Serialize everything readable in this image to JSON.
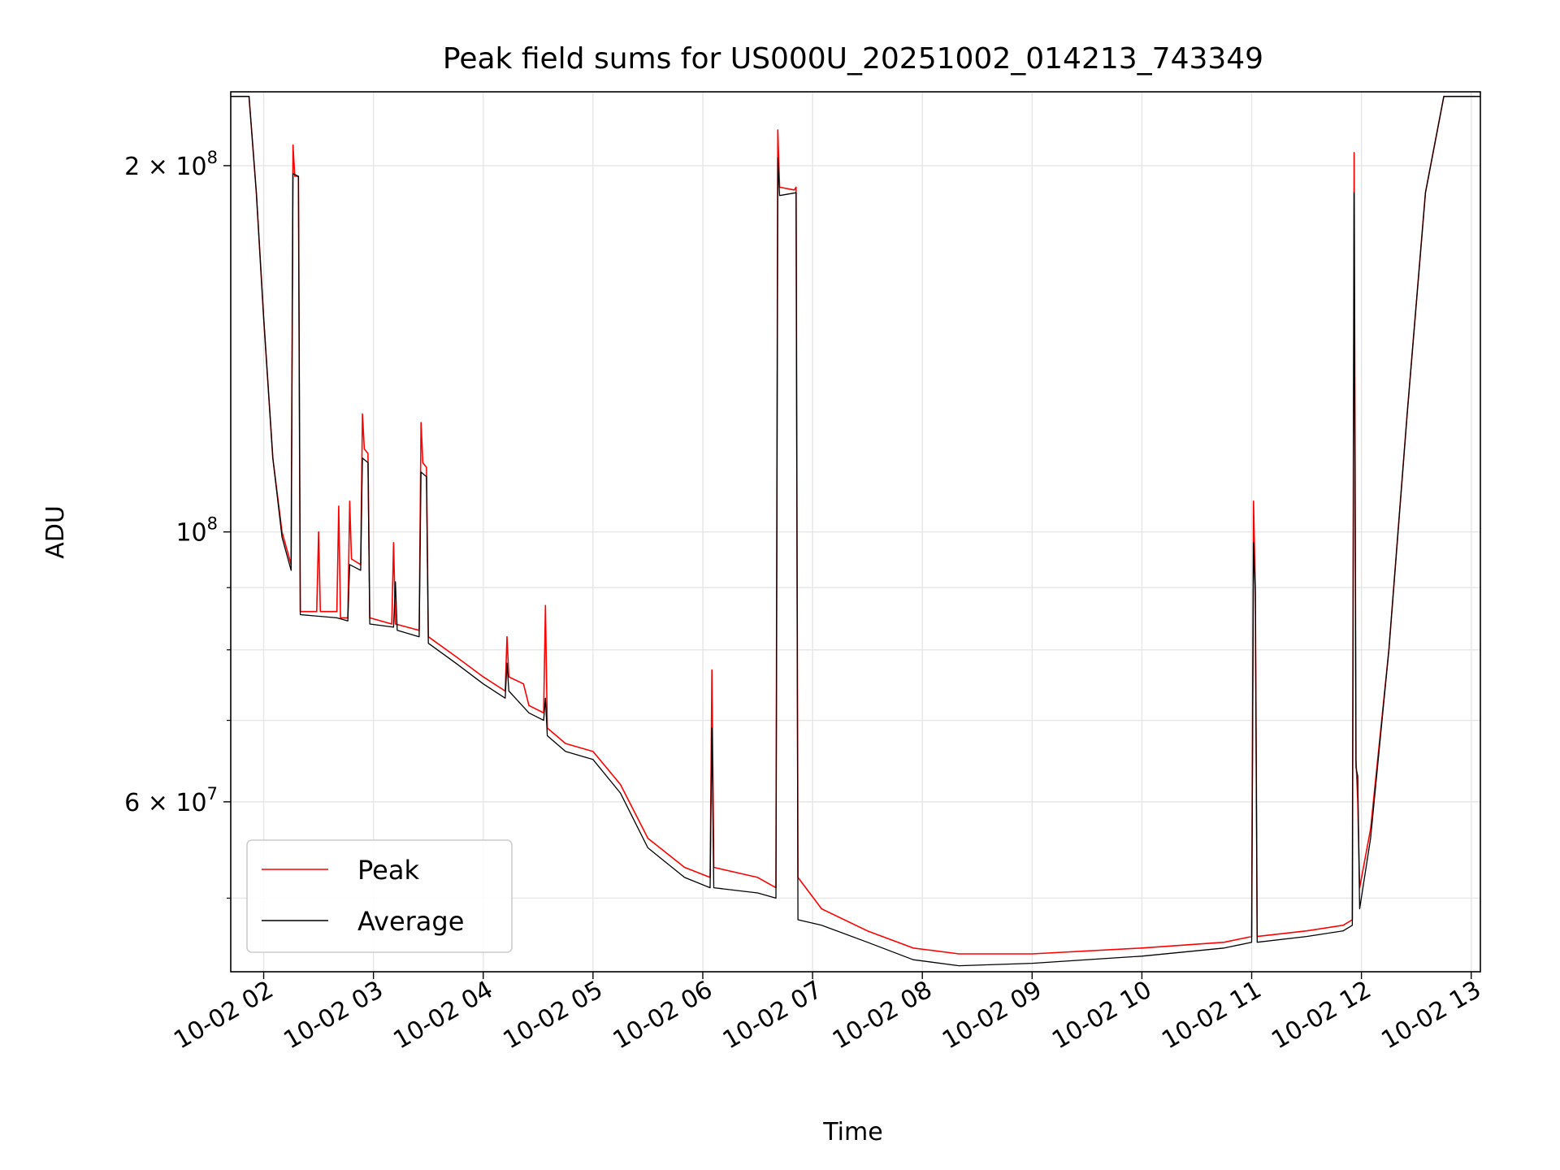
{
  "chart_data": {
    "type": "line",
    "title": "Peak field sums for US000U_20251002_014213_743349",
    "xlabel": "Time",
    "ylabel": "ADU",
    "y_scale": "log",
    "xlim": [
      "2025-10-02T01:42",
      "2025-10-02T13:05"
    ],
    "ylim": [
      43500000,
      230000000
    ],
    "grid": true,
    "legend_position": "lower-left",
    "x_ticks": [
      {
        "t": "2025-10-02T02:00",
        "label": "10-02 02"
      },
      {
        "t": "2025-10-02T03:00",
        "label": "10-02 03"
      },
      {
        "t": "2025-10-02T04:00",
        "label": "10-02 04"
      },
      {
        "t": "2025-10-02T05:00",
        "label": "10-02 05"
      },
      {
        "t": "2025-10-02T06:00",
        "label": "10-02 06"
      },
      {
        "t": "2025-10-02T07:00",
        "label": "10-02 07"
      },
      {
        "t": "2025-10-02T08:00",
        "label": "10-02 08"
      },
      {
        "t": "2025-10-02T09:00",
        "label": "10-02 09"
      },
      {
        "t": "2025-10-02T10:00",
        "label": "10-02 10"
      },
      {
        "t": "2025-10-02T11:00",
        "label": "10-02 11"
      },
      {
        "t": "2025-10-02T12:00",
        "label": "10-02 12"
      },
      {
        "t": "2025-10-02T13:00",
        "label": "10-02 13"
      }
    ],
    "y_major_ticks": [
      {
        "value": 200000000,
        "mantissa": "2",
        "exponent": "8"
      },
      {
        "value": 100000000,
        "mantissa": "",
        "exponent": "8"
      },
      {
        "value": 60000000,
        "mantissa": "6",
        "exponent": "7"
      }
    ],
    "y_minor_ticks": [
      50000000,
      70000000,
      80000000,
      90000000
    ],
    "series": [
      {
        "name": "Peak",
        "color": "#ff0000",
        "points": [
          [
            "2025-10-02T01:42",
            228000000
          ],
          [
            "2025-10-02T01:52",
            228000000
          ],
          [
            "2025-10-02T01:56",
            190000000
          ],
          [
            "2025-10-02T02:00",
            150000000
          ],
          [
            "2025-10-02T02:05",
            115000000
          ],
          [
            "2025-10-02T02:10",
            100000000
          ],
          [
            "2025-10-02T02:15",
            94000000
          ],
          [
            "2025-10-02T02:16",
            208000000
          ],
          [
            "2025-10-02T02:17",
            196000000
          ],
          [
            "2025-10-02T02:19",
            196000000
          ],
          [
            "2025-10-02T02:20",
            86000000
          ],
          [
            "2025-10-02T02:29",
            86000000
          ],
          [
            "2025-10-02T02:30",
            100000000
          ],
          [
            "2025-10-02T02:31",
            86000000
          ],
          [
            "2025-10-02T02:40",
            86000000
          ],
          [
            "2025-10-02T02:41",
            105000000
          ],
          [
            "2025-10-02T02:42",
            85000000
          ],
          [
            "2025-10-02T02:46",
            85000000
          ],
          [
            "2025-10-02T02:47",
            106000000
          ],
          [
            "2025-10-02T02:48",
            95000000
          ],
          [
            "2025-10-02T02:53",
            94000000
          ],
          [
            "2025-10-02T02:54",
            125000000
          ],
          [
            "2025-10-02T02:55",
            117000000
          ],
          [
            "2025-10-02T02:57",
            116000000
          ],
          [
            "2025-10-02T02:58",
            85000000
          ],
          [
            "2025-10-02T03:10",
            84000000
          ],
          [
            "2025-10-02T03:11",
            98000000
          ],
          [
            "2025-10-02T03:12",
            84000000
          ],
          [
            "2025-10-02T03:25",
            83000000
          ],
          [
            "2025-10-02T03:26",
            123000000
          ],
          [
            "2025-10-02T03:27",
            114000000
          ],
          [
            "2025-10-02T03:29",
            113000000
          ],
          [
            "2025-10-02T03:30",
            82000000
          ],
          [
            "2025-10-02T03:45",
            79000000
          ],
          [
            "2025-10-02T04:00",
            76000000
          ],
          [
            "2025-10-02T04:12",
            74000000
          ],
          [
            "2025-10-02T04:13",
            82000000
          ],
          [
            "2025-10-02T04:14",
            76000000
          ],
          [
            "2025-10-02T04:22",
            75000000
          ],
          [
            "2025-10-02T04:25",
            72000000
          ],
          [
            "2025-10-02T04:33",
            71000000
          ],
          [
            "2025-10-02T04:34",
            87000000
          ],
          [
            "2025-10-02T04:35",
            69000000
          ],
          [
            "2025-10-02T04:45",
            67000000
          ],
          [
            "2025-10-02T05:00",
            66000000
          ],
          [
            "2025-10-02T05:15",
            62000000
          ],
          [
            "2025-10-02T05:30",
            56000000
          ],
          [
            "2025-10-02T05:50",
            53000000
          ],
          [
            "2025-10-02T06:04",
            52000000
          ],
          [
            "2025-10-02T06:05",
            77000000
          ],
          [
            "2025-10-02T06:06",
            53000000
          ],
          [
            "2025-10-02T06:30",
            52000000
          ],
          [
            "2025-10-02T06:40",
            51000000
          ],
          [
            "2025-10-02T06:41",
            214000000
          ],
          [
            "2025-10-02T06:42",
            192000000
          ],
          [
            "2025-10-02T06:50",
            191000000
          ],
          [
            "2025-10-02T06:51",
            192000000
          ],
          [
            "2025-10-02T06:52",
            52000000
          ],
          [
            "2025-10-02T07:05",
            49000000
          ],
          [
            "2025-10-02T07:30",
            47000000
          ],
          [
            "2025-10-02T07:55",
            45500000
          ],
          [
            "2025-10-02T08:20",
            45000000
          ],
          [
            "2025-10-02T09:00",
            45000000
          ],
          [
            "2025-10-02T10:00",
            45500000
          ],
          [
            "2025-10-02T10:45",
            46000000
          ],
          [
            "2025-10-02T11:00",
            46500000
          ],
          [
            "2025-10-02T11:01",
            106000000
          ],
          [
            "2025-10-02T11:02",
            90000000
          ],
          [
            "2025-10-02T11:03",
            46500000
          ],
          [
            "2025-10-02T11:30",
            47000000
          ],
          [
            "2025-10-02T11:50",
            47500000
          ],
          [
            "2025-10-02T11:55",
            48000000
          ],
          [
            "2025-10-02T11:56",
            205000000
          ],
          [
            "2025-10-02T11:57",
            65000000
          ],
          [
            "2025-10-02T11:58",
            60000000
          ],
          [
            "2025-10-02T11:59",
            51000000
          ],
          [
            "2025-10-02T12:05",
            57000000
          ],
          [
            "2025-10-02T12:15",
            80000000
          ],
          [
            "2025-10-02T12:25",
            125000000
          ],
          [
            "2025-10-02T12:35",
            190000000
          ],
          [
            "2025-10-02T12:45",
            228000000
          ],
          [
            "2025-10-02T13:05",
            228000000
          ]
        ]
      },
      {
        "name": "Average",
        "color": "#000000",
        "points": [
          [
            "2025-10-02T01:42",
            228000000
          ],
          [
            "2025-10-02T01:52",
            228000000
          ],
          [
            "2025-10-02T01:56",
            190000000
          ],
          [
            "2025-10-02T02:00",
            150000000
          ],
          [
            "2025-10-02T02:05",
            115000000
          ],
          [
            "2025-10-02T02:10",
            99000000
          ],
          [
            "2025-10-02T02:15",
            93000000
          ],
          [
            "2025-10-02T02:16",
            197000000
          ],
          [
            "2025-10-02T02:19",
            196000000
          ],
          [
            "2025-10-02T02:20",
            85500000
          ],
          [
            "2025-10-02T02:40",
            85000000
          ],
          [
            "2025-10-02T02:46",
            84500000
          ],
          [
            "2025-10-02T02:47",
            94000000
          ],
          [
            "2025-10-02T02:53",
            93000000
          ],
          [
            "2025-10-02T02:54",
            115000000
          ],
          [
            "2025-10-02T02:57",
            114000000
          ],
          [
            "2025-10-02T02:58",
            84000000
          ],
          [
            "2025-10-02T03:11",
            83500000
          ],
          [
            "2025-10-02T03:12",
            91000000
          ],
          [
            "2025-10-02T03:13",
            83000000
          ],
          [
            "2025-10-02T03:25",
            82000000
          ],
          [
            "2025-10-02T03:26",
            112000000
          ],
          [
            "2025-10-02T03:29",
            111000000
          ],
          [
            "2025-10-02T03:30",
            81000000
          ],
          [
            "2025-10-02T03:45",
            78000000
          ],
          [
            "2025-10-02T04:00",
            75000000
          ],
          [
            "2025-10-02T04:12",
            73000000
          ],
          [
            "2025-10-02T04:13",
            78000000
          ],
          [
            "2025-10-02T04:14",
            74000000
          ],
          [
            "2025-10-02T04:25",
            71000000
          ],
          [
            "2025-10-02T04:33",
            70000000
          ],
          [
            "2025-10-02T04:34",
            73000000
          ],
          [
            "2025-10-02T04:35",
            68000000
          ],
          [
            "2025-10-02T04:45",
            66000000
          ],
          [
            "2025-10-02T05:00",
            65000000
          ],
          [
            "2025-10-02T05:15",
            61000000
          ],
          [
            "2025-10-02T05:30",
            55000000
          ],
          [
            "2025-10-02T05:50",
            52000000
          ],
          [
            "2025-10-02T06:04",
            51000000
          ],
          [
            "2025-10-02T06:05",
            69000000
          ],
          [
            "2025-10-02T06:06",
            51000000
          ],
          [
            "2025-10-02T06:30",
            50500000
          ],
          [
            "2025-10-02T06:40",
            50000000
          ],
          [
            "2025-10-02T06:41",
            203000000
          ],
          [
            "2025-10-02T06:42",
            189000000
          ],
          [
            "2025-10-02T06:51",
            190000000
          ],
          [
            "2025-10-02T06:52",
            48000000
          ],
          [
            "2025-10-02T07:05",
            47500000
          ],
          [
            "2025-10-02T07:30",
            46000000
          ],
          [
            "2025-10-02T07:55",
            44500000
          ],
          [
            "2025-10-02T08:20",
            44000000
          ],
          [
            "2025-10-02T09:00",
            44200000
          ],
          [
            "2025-10-02T10:00",
            44800000
          ],
          [
            "2025-10-02T10:45",
            45500000
          ],
          [
            "2025-10-02T11:00",
            46000000
          ],
          [
            "2025-10-02T11:01",
            98000000
          ],
          [
            "2025-10-02T11:02",
            89000000
          ],
          [
            "2025-10-02T11:03",
            46000000
          ],
          [
            "2025-10-02T11:30",
            46500000
          ],
          [
            "2025-10-02T11:50",
            47000000
          ],
          [
            "2025-10-02T11:55",
            47500000
          ],
          [
            "2025-10-02T11:56",
            190000000
          ],
          [
            "2025-10-02T11:57",
            64000000
          ],
          [
            "2025-10-02T11:58",
            63000000
          ],
          [
            "2025-10-02T11:59",
            49000000
          ],
          [
            "2025-10-02T12:05",
            56000000
          ],
          [
            "2025-10-02T12:15",
            80000000
          ],
          [
            "2025-10-02T12:25",
            125000000
          ],
          [
            "2025-10-02T12:35",
            190000000
          ],
          [
            "2025-10-02T12:45",
            228000000
          ],
          [
            "2025-10-02T13:05",
            228000000
          ]
        ]
      }
    ]
  }
}
